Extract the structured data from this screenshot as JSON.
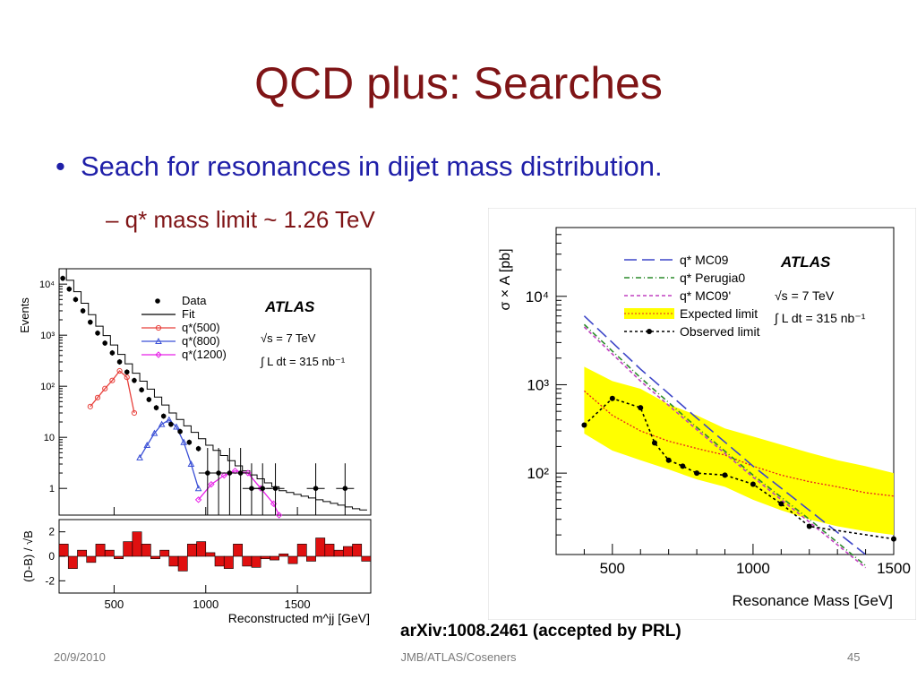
{
  "slide": {
    "title": "QCD plus: Searches",
    "bullet": "Seach for resonances in dijet mass distribution.",
    "sub_bullet": "– q* mass limit ~ 1.26 TeV",
    "citation": "arXiv:1008.2461 (accepted by PRL)",
    "footer": {
      "date": "20/9/2010",
      "center": "JMB/ATLAS/Coseners",
      "page": "45"
    }
  },
  "chart_data": [
    {
      "type": "line",
      "title": "ATLAS",
      "annotations": [
        "√s = 7 TeV",
        "∫ L dt = 315 nb⁻¹"
      ],
      "xlabel": "Reconstructed m^jj [GeV]",
      "ylabel": "Events",
      "yscale": "log",
      "xlim": [
        200,
        1900
      ],
      "ylim": [
        0.3,
        20000
      ],
      "x_ticks": [
        "500",
        "1000",
        "1500"
      ],
      "y_ticks": [
        "1",
        "10",
        "10²",
        "10³",
        "10⁴"
      ],
      "legend_position": "top-right",
      "series": [
        {
          "name": "Data",
          "color": "#000000",
          "x": [
            220,
            255,
            290,
            330,
            370,
            410,
            450,
            490,
            530,
            570,
            610,
            650,
            690,
            730,
            770,
            810,
            860,
            910,
            960,
            1010,
            1070,
            1130,
            1190,
            1250,
            1310,
            1380,
            1600,
            1760
          ],
          "y": [
            13000,
            8000,
            5000,
            3000,
            1800,
            1100,
            700,
            450,
            300,
            190,
            130,
            85,
            55,
            38,
            26,
            18,
            13,
            8,
            6,
            2,
            2,
            2,
            2,
            1,
            1,
            1,
            1,
            1
          ]
        },
        {
          "name": "Fit",
          "color": "#000000",
          "x": [
            200,
            400,
            600,
            800,
            1000,
            1200,
            1400,
            1600,
            1800,
            1900
          ],
          "y": [
            20000,
            1500,
            180,
            30,
            7,
            2.2,
            0.9,
            0.6,
            0.4,
            0.35
          ]
        },
        {
          "name": "q*(500)",
          "color": "#e8413c",
          "x": [
            370,
            410,
            450,
            490,
            530,
            570,
            610
          ],
          "y": [
            40,
            60,
            90,
            130,
            200,
            150,
            30
          ]
        },
        {
          "name": "q*(800)",
          "color": "#3b50d6",
          "x": [
            640,
            680,
            720,
            760,
            800,
            840,
            880,
            920,
            960
          ],
          "y": [
            4,
            7,
            12,
            18,
            22,
            16,
            8,
            3,
            1
          ]
        },
        {
          "name": "q*(1200)",
          "color": "#e820e8",
          "x": [
            960,
            1030,
            1100,
            1160,
            1230,
            1300,
            1370,
            1400
          ],
          "y": [
            0.6,
            1.2,
            1.8,
            2.2,
            2.0,
            1.0,
            0.5,
            0.3
          ]
        }
      ],
      "sub_panel": {
        "ylabel": "(D-B) / √B",
        "y_ticks": [
          "2",
          "0",
          "-2"
        ],
        "ylim": [
          -3,
          3
        ],
        "x": [
          225,
          275,
          325,
          375,
          425,
          475,
          525,
          575,
          625,
          675,
          725,
          775,
          825,
          875,
          925,
          975,
          1025,
          1075,
          1125,
          1175,
          1225,
          1275,
          1325,
          1375,
          1425,
          1475,
          1525,
          1575,
          1625,
          1675,
          1725,
          1775,
          1825,
          1875
        ],
        "values": [
          1.0,
          -1.0,
          0.5,
          -0.5,
          1.0,
          0.5,
          -0.2,
          1.2,
          2.0,
          1.0,
          -0.2,
          0.5,
          -0.8,
          -1.2,
          1.0,
          1.2,
          0.3,
          -0.8,
          -1.0,
          1.0,
          -0.8,
          -0.9,
          -0.2,
          -0.3,
          0.2,
          -0.6,
          1.0,
          -0.4,
          1.5,
          1.0,
          0.5,
          0.8,
          1.0,
          -0.4
        ]
      }
    },
    {
      "type": "line",
      "title": "ATLAS",
      "annotations": [
        "√s = 7 TeV",
        "∫ L dt = 315 nb⁻¹"
      ],
      "xlabel": "Resonance Mass [GeV]",
      "ylabel": "σ × A [pb]",
      "yscale": "log",
      "xlim": [
        300,
        1500
      ],
      "ylim": [
        12,
        60000
      ],
      "x_ticks": [
        "500",
        "1000",
        "1500"
      ],
      "y_ticks": [
        "10²",
        "10³",
        "10⁴"
      ],
      "legend_position": "top-center",
      "series": [
        {
          "name": "q* MC09",
          "color": "#3d46c8",
          "style": "long-dash",
          "x": [
            400,
            600,
            800,
            1000,
            1200,
            1400
          ],
          "y": [
            6000,
            1500,
            420,
            120,
            38,
            12
          ]
        },
        {
          "name": "q* Perugia0",
          "color": "#2a8a2a",
          "style": "dash-dot",
          "x": [
            400,
            600,
            800,
            1000,
            1200,
            1400
          ],
          "y": [
            4800,
            1200,
            330,
            95,
            30,
            9
          ]
        },
        {
          "name": "q* MC09'",
          "color": "#c040c0",
          "style": "dash",
          "x": [
            400,
            600,
            800,
            1000,
            1200,
            1400
          ],
          "y": [
            4500,
            1100,
            310,
            90,
            28,
            8.5
          ]
        },
        {
          "name": "Expected limit",
          "color": "#ffff00",
          "x": [
            400,
            500,
            600,
            700,
            800,
            900,
            1000,
            1100,
            1200,
            1300,
            1400,
            1500
          ],
          "y": [
            850,
            450,
            300,
            230,
            190,
            160,
            120,
            95,
            80,
            70,
            60,
            55
          ],
          "band_low": [
            280,
            180,
            140,
            110,
            85,
            70,
            50,
            38,
            30,
            25,
            22,
            20
          ],
          "band_high": [
            1600,
            1100,
            900,
            600,
            450,
            320,
            260,
            210,
            170,
            140,
            120,
            100
          ]
        },
        {
          "name": "Observed limit",
          "color": "#000000",
          "style": "dotted",
          "x": [
            400,
            500,
            600,
            650,
            700,
            750,
            800,
            900,
            1000,
            1100,
            1200,
            1500
          ],
          "y": [
            350,
            700,
            550,
            220,
            140,
            120,
            100,
            95,
            75,
            45,
            25,
            18
          ]
        }
      ]
    }
  ]
}
